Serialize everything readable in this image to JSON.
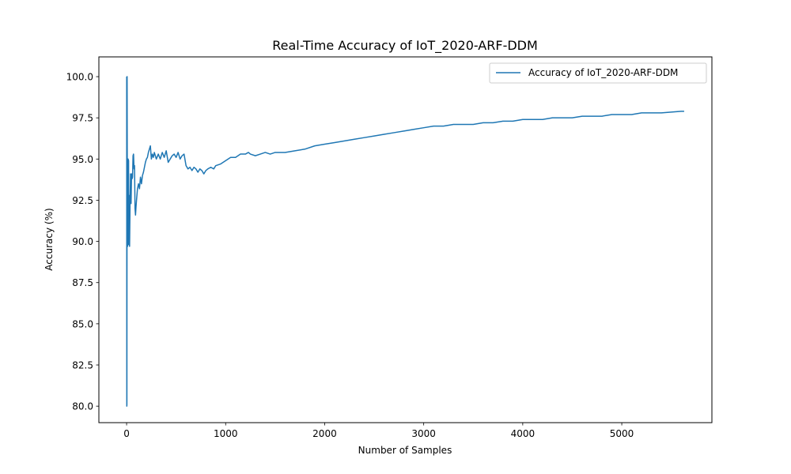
{
  "chart_data": {
    "type": "line",
    "title": "Real-Time Accuracy of IoT_2020-ARF-DDM",
    "xlabel": "Number of Samples",
    "ylabel": "Accuracy (%)",
    "xlim": [
      -280,
      5910
    ],
    "ylim": [
      79.0,
      101.2
    ],
    "xticks": [
      0,
      1000,
      2000,
      3000,
      4000,
      5000
    ],
    "xtick_labels": [
      "0",
      "1000",
      "2000",
      "3000",
      "4000",
      "5000"
    ],
    "yticks": [
      80.0,
      82.5,
      85.0,
      87.5,
      90.0,
      92.5,
      95.0,
      97.5,
      100.0
    ],
    "ytick_labels": [
      "80.0",
      "82.5",
      "85.0",
      "87.5",
      "90.0",
      "92.5",
      "95.0",
      "97.5",
      "100.0"
    ],
    "grid": false,
    "legend_position": "upper right",
    "colors": {
      "series": "#1f77b4"
    },
    "series": [
      {
        "name": "Accuracy of IoT_2020-ARF-DDM",
        "x": [
          1,
          2,
          3,
          5,
          8,
          10,
          15,
          20,
          22,
          25,
          30,
          35,
          40,
          45,
          50,
          55,
          60,
          65,
          70,
          75,
          80,
          85,
          90,
          95,
          100,
          110,
          120,
          130,
          140,
          150,
          160,
          170,
          180,
          190,
          200,
          210,
          220,
          230,
          240,
          250,
          260,
          270,
          280,
          300,
          320,
          340,
          360,
          380,
          400,
          420,
          440,
          460,
          480,
          500,
          520,
          540,
          560,
          580,
          600,
          620,
          640,
          660,
          680,
          700,
          720,
          740,
          760,
          780,
          800,
          820,
          850,
          880,
          900,
          950,
          1000,
          1050,
          1100,
          1150,
          1200,
          1230,
          1250,
          1300,
          1350,
          1400,
          1450,
          1500,
          1600,
          1700,
          1800,
          1900,
          2000,
          2100,
          2200,
          2300,
          2400,
          2500,
          2600,
          2700,
          2800,
          2900,
          3000,
          3100,
          3200,
          3300,
          3400,
          3500,
          3600,
          3700,
          3800,
          3900,
          4000,
          4100,
          4200,
          4300,
          4400,
          4500,
          4600,
          4700,
          4800,
          4900,
          5000,
          5100,
          5200,
          5300,
          5400,
          5500,
          5600,
          5630
        ],
        "y": [
          100.0,
          80.0,
          80.1,
          100.0,
          90.0,
          89.7,
          95.0,
          94.9,
          89.8,
          92.8,
          89.7,
          92.4,
          94.1,
          92.3,
          94.1,
          93.8,
          93.9,
          95.2,
          95.3,
          94.4,
          94.6,
          92.0,
          91.6,
          92.1,
          92.5,
          93.2,
          93.5,
          93.2,
          93.9,
          93.5,
          94.0,
          94.2,
          94.5,
          94.8,
          95.0,
          95.1,
          95.4,
          95.6,
          95.8,
          95.0,
          95.3,
          95.1,
          95.4,
          95.0,
          95.3,
          95.0,
          95.4,
          95.1,
          95.5,
          94.8,
          95.0,
          95.2,
          95.3,
          95.1,
          95.4,
          95.0,
          95.2,
          95.3,
          94.6,
          94.4,
          94.5,
          94.3,
          94.5,
          94.4,
          94.2,
          94.4,
          94.3,
          94.1,
          94.3,
          94.4,
          94.5,
          94.4,
          94.6,
          94.7,
          94.9,
          95.1,
          95.1,
          95.3,
          95.3,
          95.4,
          95.3,
          95.2,
          95.3,
          95.4,
          95.3,
          95.4,
          95.4,
          95.5,
          95.6,
          95.8,
          95.9,
          96.0,
          96.1,
          96.2,
          96.3,
          96.4,
          96.5,
          96.6,
          96.7,
          96.8,
          96.9,
          97.0,
          97.0,
          97.1,
          97.1,
          97.1,
          97.2,
          97.2,
          97.3,
          97.3,
          97.4,
          97.4,
          97.4,
          97.5,
          97.5,
          97.5,
          97.6,
          97.6,
          97.6,
          97.7,
          97.7,
          97.7,
          97.8,
          97.8,
          97.8,
          97.85,
          97.9,
          97.9
        ]
      }
    ]
  }
}
